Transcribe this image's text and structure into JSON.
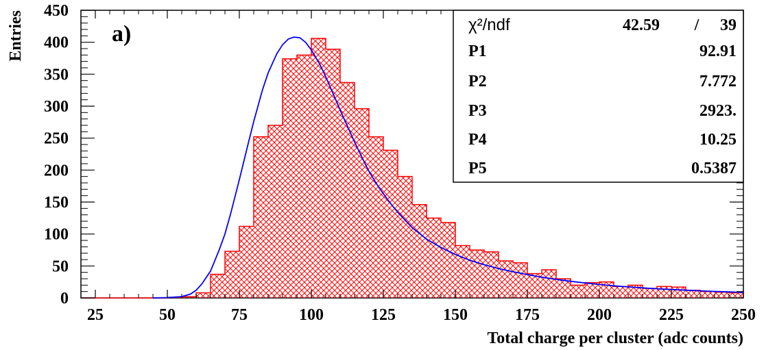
{
  "chart_data": {
    "type": "bar",
    "panel_label": "a)",
    "xlabel": "Total charge per cluster (adc counts)",
    "ylabel": "Entries",
    "xlim": [
      20,
      250
    ],
    "ylim": [
      0,
      450
    ],
    "xticks": [
      25,
      50,
      75,
      100,
      125,
      150,
      175,
      200,
      225,
      250
    ],
    "yticks": [
      0,
      50,
      100,
      150,
      200,
      250,
      300,
      350,
      400,
      450
    ],
    "bin_width": 5,
    "bin_low_edges": [
      20,
      25,
      30,
      35,
      40,
      45,
      50,
      55,
      60,
      65,
      70,
      75,
      80,
      85,
      90,
      95,
      100,
      105,
      110,
      115,
      120,
      125,
      130,
      135,
      140,
      145,
      150,
      155,
      160,
      165,
      170,
      175,
      180,
      185,
      190,
      195,
      200,
      205,
      210,
      215,
      220,
      225,
      230,
      235,
      240,
      245
    ],
    "series": [
      {
        "kind": "histogram",
        "values": [
          0,
          0,
          0,
          0,
          0,
          0,
          1,
          2,
          8,
          37,
          73,
          112,
          252,
          270,
          374,
          380,
          406,
          389,
          337,
          296,
          252,
          231,
          190,
          146,
          125,
          118,
          82,
          75,
          72,
          58,
          55,
          38,
          44,
          30,
          20,
          24,
          25,
          18,
          20,
          15,
          18,
          17,
          12,
          10,
          9,
          8
        ],
        "color": "#ff0000"
      },
      {
        "kind": "fit",
        "color": "#0000ff",
        "points": [
          [
            45,
            0
          ],
          [
            50,
            0.5
          ],
          [
            55,
            2
          ],
          [
            58,
            6
          ],
          [
            60,
            12
          ],
          [
            62,
            22
          ],
          [
            65,
            42
          ],
          [
            68,
            75
          ],
          [
            70,
            100
          ],
          [
            72,
            132
          ],
          [
            75,
            185
          ],
          [
            78,
            240
          ],
          [
            80,
            276
          ],
          [
            83,
            325
          ],
          [
            85,
            352
          ],
          [
            88,
            382
          ],
          [
            90,
            396
          ],
          [
            92,
            405
          ],
          [
            94,
            408
          ],
          [
            96,
            407
          ],
          [
            98,
            400
          ],
          [
            100,
            388
          ],
          [
            103,
            365
          ],
          [
            105,
            346
          ],
          [
            108,
            315
          ],
          [
            110,
            294
          ],
          [
            113,
            264
          ],
          [
            115,
            244
          ],
          [
            118,
            216
          ],
          [
            120,
            198
          ],
          [
            123,
            176
          ],
          [
            125,
            163
          ],
          [
            128,
            145
          ],
          [
            130,
            134
          ],
          [
            135,
            110
          ],
          [
            140,
            92
          ],
          [
            145,
            79
          ],
          [
            150,
            68
          ],
          [
            155,
            59
          ],
          [
            160,
            52
          ],
          [
            165,
            46
          ],
          [
            170,
            41
          ],
          [
            175,
            36.5
          ],
          [
            180,
            32.5
          ],
          [
            185,
            29
          ],
          [
            190,
            26
          ],
          [
            195,
            23.5
          ],
          [
            200,
            21
          ],
          [
            205,
            19
          ],
          [
            210,
            17.3
          ],
          [
            215,
            15.8
          ],
          [
            220,
            14.4
          ],
          [
            225,
            13.2
          ],
          [
            230,
            12.1
          ],
          [
            235,
            11.1
          ],
          [
            240,
            10.2
          ],
          [
            245,
            9.4
          ],
          [
            250,
            8.7
          ]
        ]
      }
    ],
    "stats_box": {
      "chi_label": "χ²/ndf",
      "chi_value": "42.59",
      "chi_sep": "/",
      "ndf_value": "39",
      "rows": [
        {
          "name": "P1",
          "value": "92.91"
        },
        {
          "name": "P2",
          "value": "7.772"
        },
        {
          "name": "P3",
          "value": "2923."
        },
        {
          "name": "P4",
          "value": "10.25"
        },
        {
          "name": "P5",
          "value": "0.5387"
        }
      ]
    }
  }
}
